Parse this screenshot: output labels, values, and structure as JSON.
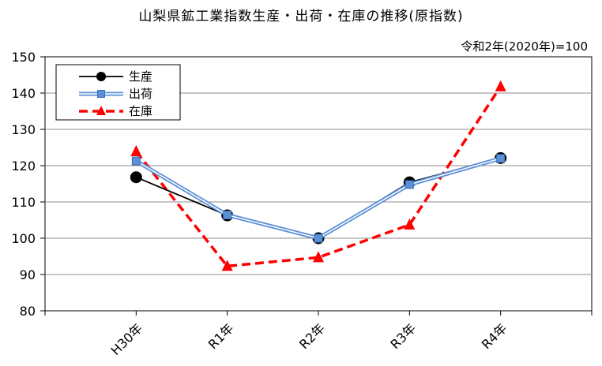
{
  "chart_data": {
    "type": "line",
    "title": "山梨県鉱工業指数生産・出荷・在庫の推移(原指数)",
    "subtitle": "令和2年(2020年)=100",
    "categories": [
      "H30年",
      "R1年",
      "R2年",
      "R3年",
      "R4年"
    ],
    "ylim": [
      80,
      150
    ],
    "yticks": [
      80,
      90,
      100,
      110,
      120,
      130,
      140,
      150
    ],
    "grid": true,
    "legend_position": "top-left",
    "series": [
      {
        "name": "生産",
        "values": [
          116.8,
          106.3,
          100.0,
          115.4,
          122.1
        ],
        "color": "#000000",
        "marker": "circle",
        "style": "solid"
      },
      {
        "name": "出荷",
        "values": [
          121.3,
          106.4,
          100.0,
          114.8,
          122.0
        ],
        "color": "#5b8fd6",
        "marker": "square",
        "style": "double"
      },
      {
        "name": "在庫",
        "values": [
          123.9,
          92.3,
          94.7,
          103.7,
          141.8
        ],
        "color": "#ff0000",
        "marker": "triangle",
        "style": "dashed"
      }
    ]
  }
}
